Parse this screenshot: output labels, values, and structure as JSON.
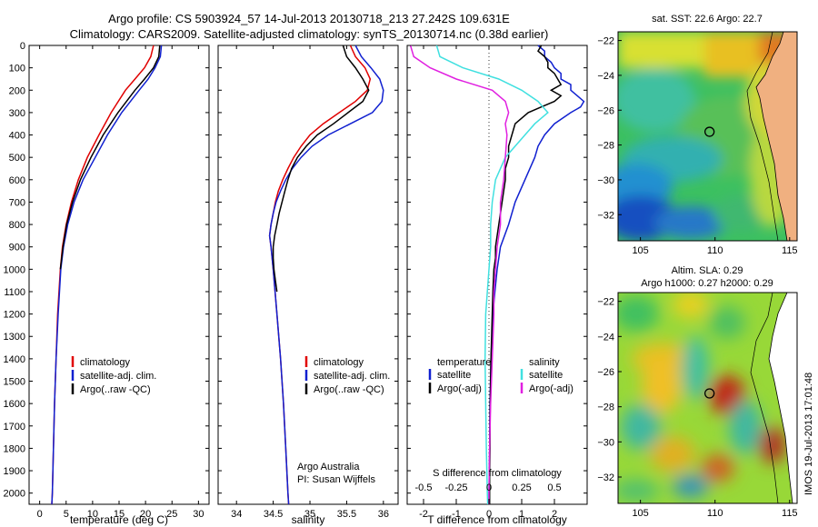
{
  "header": {
    "title_line1": "Argo profile: CS 5903924_57 14-Jul-2013 20130718_213 27.242S 109.631E",
    "title_line2": "Climatology: CARS2009. Satellite-adjusted climatology: synTS_20130714.nc (0.38d earlier)"
  },
  "colors": {
    "climatology": "#e00000",
    "satellite": "#1020d0",
    "argo": "#000000",
    "satellite_salinity": "#40e0e0",
    "argo_salinity": "#e020e0"
  },
  "labels": {
    "argo_australia": "Argo Australia",
    "pi": "PI: Susan Wijffels",
    "imos_stamp": "IMOS 19-Jul-2013 17:01:48"
  },
  "chart_data": [
    {
      "id": "temperature",
      "type": "line",
      "xlabel": "temperature (deg C)",
      "xlim": [
        -2,
        32
      ],
      "ylim": [
        0,
        2050
      ],
      "y_reversed": true,
      "xticks": [
        0,
        5,
        10,
        15,
        20,
        25,
        30
      ],
      "yticks": [
        0,
        100,
        200,
        300,
        400,
        500,
        600,
        700,
        800,
        900,
        1000,
        1100,
        1200,
        1300,
        1400,
        1500,
        1600,
        1700,
        1800,
        1900,
        2000
      ],
      "legend": [
        "climatology",
        "satellite-adj. clim.",
        "Argo(..raw -QC)"
      ],
      "series": [
        {
          "name": "climatology",
          "color": "#e00000",
          "depth": [
            0,
            50,
            100,
            150,
            200,
            300,
            400,
            500,
            600,
            700,
            800,
            900,
            1000,
            1200,
            1400,
            1600,
            1800,
            2000,
            2050
          ],
          "values": [
            21.5,
            21.0,
            19.8,
            18.0,
            16.2,
            13.5,
            11.2,
            9.0,
            7.3,
            6.0,
            5.0,
            4.3,
            3.9,
            3.4,
            3.1,
            2.8,
            2.6,
            2.4,
            2.3
          ]
        },
        {
          "name": "satellite-adj. clim.",
          "color": "#1020d0",
          "depth": [
            0,
            50,
            100,
            150,
            200,
            300,
            400,
            500,
            600,
            700,
            800,
            900,
            1000,
            1200,
            1400,
            1600,
            1800,
            2000,
            2050
          ],
          "values": [
            23.0,
            22.8,
            21.8,
            20.5,
            18.8,
            15.5,
            12.8,
            10.5,
            8.2,
            6.5,
            5.3,
            4.5,
            4.0,
            3.5,
            3.1,
            2.8,
            2.6,
            2.4,
            2.3
          ]
        },
        {
          "name": "Argo(..raw -QC)",
          "color": "#000000",
          "depth": [
            0,
            50,
            100,
            150,
            200,
            300,
            400,
            500,
            600,
            700,
            800,
            900,
            1000
          ],
          "values": [
            22.7,
            22.5,
            21.5,
            19.8,
            18.0,
            14.8,
            12.0,
            9.7,
            7.7,
            6.2,
            5.1,
            4.4,
            3.9
          ]
        }
      ]
    },
    {
      "id": "salinity",
      "type": "line",
      "xlabel": "salinity",
      "xlim": [
        33.75,
        36.2
      ],
      "ylim": [
        0,
        2050
      ],
      "y_reversed": true,
      "xticks": [
        34,
        34.5,
        35,
        35.5,
        36
      ],
      "legend": [
        "climatology",
        "satellite-adj. clim.",
        "Argo(..raw -QC)"
      ],
      "series": [
        {
          "name": "climatology",
          "color": "#e00000",
          "depth": [
            0,
            50,
            100,
            150,
            200,
            250,
            300,
            350,
            400,
            450,
            500,
            550,
            600,
            650,
            700,
            750,
            800,
            850,
            900,
            1000,
            1200,
            1400,
            1600,
            1800,
            2000,
            2050
          ],
          "values": [
            35.55,
            35.62,
            35.75,
            35.82,
            35.78,
            35.62,
            35.4,
            35.18,
            35.0,
            34.88,
            34.78,
            34.7,
            34.63,
            34.57,
            34.53,
            34.5,
            34.47,
            34.45,
            34.47,
            34.5,
            34.55,
            34.6,
            34.64,
            34.67,
            34.7,
            34.71
          ]
        },
        {
          "name": "satellite-adj. clim.",
          "color": "#1020d0",
          "depth": [
            0,
            50,
            100,
            150,
            200,
            250,
            300,
            350,
            400,
            450,
            500,
            550,
            600,
            650,
            700,
            750,
            800,
            850,
            900,
            1000,
            1200,
            1400,
            1600,
            1800,
            2000,
            2050
          ],
          "values": [
            35.62,
            35.7,
            35.83,
            35.95,
            36.0,
            35.98,
            35.85,
            35.55,
            35.25,
            35.03,
            34.88,
            34.76,
            34.67,
            34.6,
            34.54,
            34.5,
            34.47,
            34.45,
            34.47,
            34.5,
            34.55,
            34.6,
            34.64,
            34.67,
            34.7,
            34.71
          ]
        },
        {
          "name": "Argo(..raw -QC)",
          "color": "#000000",
          "depth": [
            0,
            50,
            100,
            150,
            200,
            250,
            300,
            350,
            400,
            450,
            500,
            550,
            600,
            650,
            700,
            750,
            800,
            850,
            900,
            950,
            1000,
            1050,
            1100
          ],
          "values": [
            35.45,
            35.5,
            35.62,
            35.72,
            35.8,
            35.72,
            35.52,
            35.32,
            35.1,
            34.95,
            34.83,
            34.75,
            34.7,
            34.66,
            34.62,
            34.58,
            34.55,
            34.52,
            34.5,
            34.5,
            34.51,
            34.53,
            34.55
          ]
        }
      ]
    },
    {
      "id": "differences",
      "type": "line",
      "xlabel": "T difference from climatology",
      "xlabel_top": "S difference from climatology",
      "xlim": [
        -2.5,
        3.0
      ],
      "ylim": [
        0,
        2050
      ],
      "y_reversed": true,
      "xticks": [
        -2,
        -1,
        0,
        1,
        2
      ],
      "xticks_top": [
        -0.5,
        -0.25,
        0,
        0.25,
        0.5
      ],
      "legend_headers": [
        "temperature",
        "salinity"
      ],
      "legend": [
        "satellite",
        "Argo(-adj)",
        "satellite",
        "Argo(-adj)"
      ],
      "series": [
        {
          "name": "temperature satellite",
          "color": "#1020d0",
          "depth": [
            0,
            25,
            50,
            75,
            100,
            125,
            150,
            175,
            200,
            225,
            250,
            275,
            300,
            350,
            400,
            450,
            500,
            600,
            700,
            800,
            900,
            1000,
            1100,
            1200,
            1400,
            1600,
            1800,
            2000,
            2050
          ],
          "values": [
            1.5,
            1.7,
            1.7,
            1.9,
            2.0,
            2.2,
            2.2,
            2.5,
            2.5,
            2.7,
            2.9,
            2.8,
            2.5,
            2.0,
            1.7,
            1.5,
            1.4,
            1.1,
            0.8,
            0.6,
            0.35,
            0.25,
            0.18,
            0.12,
            0.06,
            0.03,
            0.02,
            0.0,
            0.0
          ]
        },
        {
          "name": "temperature Argo(-adj)",
          "color": "#000000",
          "depth": [
            0,
            25,
            50,
            75,
            100,
            125,
            150,
            175,
            200,
            225,
            250,
            275,
            300,
            350,
            400,
            450,
            500,
            550,
            600,
            650,
            700,
            750,
            800,
            850,
            900,
            950,
            1000,
            1100,
            1200,
            1300,
            1400,
            1500,
            1600,
            1700,
            1800,
            1900,
            2000,
            2050
          ],
          "values": [
            1.6,
            1.5,
            1.7,
            1.8,
            1.8,
            2.0,
            2.1,
            2.2,
            1.9,
            2.2,
            2.0,
            1.6,
            1.2,
            0.8,
            0.7,
            0.6,
            0.6,
            0.5,
            0.5,
            0.45,
            0.4,
            0.35,
            0.3,
            0.25,
            0.2,
            0.2,
            0.15,
            0.12,
            0.1,
            0.08,
            0.06,
            0.05,
            0.04,
            0.03,
            0.03,
            0.02,
            0.02,
            0.02
          ]
        },
        {
          "name": "salinity satellite",
          "color": "#40e0e0",
          "depth": [
            0,
            50,
            100,
            150,
            200,
            250,
            300,
            350,
            400,
            450,
            500,
            600,
            700,
            800,
            900,
            1000,
            1100,
            1200,
            1400,
            1600,
            1800,
            2000,
            2050
          ],
          "values": [
            -1.6,
            -1.5,
            -0.8,
            0.3,
            1.0,
            1.5,
            1.8,
            1.4,
            1.1,
            0.8,
            0.5,
            0.2,
            0.1,
            0.05,
            0.05,
            0.0,
            -0.05,
            -0.1,
            -0.12,
            -0.1,
            -0.08,
            -0.05,
            -0.04
          ]
        },
        {
          "name": "salinity Argo(-adj)",
          "color": "#e020e0",
          "depth": [
            0,
            50,
            100,
            150,
            200,
            250,
            300,
            350,
            400,
            500,
            600,
            700,
            800,
            900,
            1000,
            1100,
            1200,
            1400,
            1600,
            1800,
            2000,
            2050
          ],
          "values": [
            -2.4,
            -2.3,
            -1.8,
            -1.0,
            0.1,
            0.5,
            0.6,
            0.5,
            0.55,
            0.5,
            0.45,
            0.35,
            0.35,
            0.25,
            0.2,
            0.15,
            0.15,
            0.1,
            0.05,
            0.02,
            0.0,
            0.0
          ]
        }
      ]
    },
    {
      "id": "sst_map",
      "type": "heatmap",
      "title": "sat. SST: 22.6  Argo: 22.7",
      "xticks": [
        105,
        110,
        115
      ],
      "yticks": [
        -22,
        -24,
        -26,
        -28,
        -30,
        -32
      ],
      "xlim": [
        103.5,
        115.5
      ],
      "ylim": [
        -33.5,
        -21.5
      ],
      "marker": [
        109.631,
        -27.242
      ]
    },
    {
      "id": "sla_map",
      "type": "heatmap",
      "title_line1": "Altim. SLA: 0.29",
      "title_line2": "Argo h1000: 0.27  h2000: 0.29",
      "xticks": [
        105,
        110,
        115
      ],
      "yticks": [
        -22,
        -24,
        -26,
        -28,
        -30,
        -32
      ],
      "xlim": [
        103.5,
        115.5
      ],
      "ylim": [
        -33.5,
        -21.5
      ],
      "marker": [
        109.631,
        -27.242
      ]
    }
  ]
}
